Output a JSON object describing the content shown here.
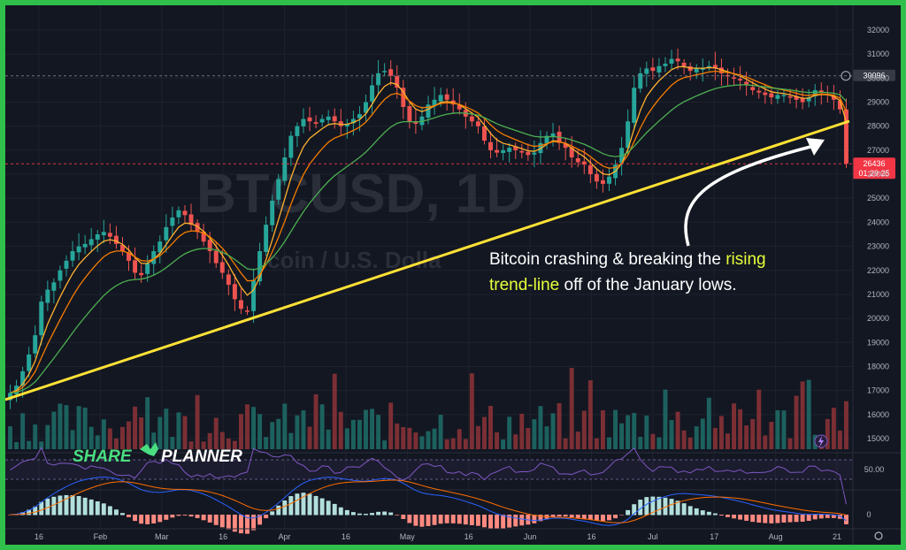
{
  "chart_data": {
    "type": "candlestick",
    "symbol_watermark": "BTCUSD, 1D",
    "watermark_subtitle": "coin / U.S. Dolla",
    "y_axis": {
      "ticks": [
        32000,
        31000,
        30000,
        29000,
        28000,
        27000,
        26000,
        25000,
        24000,
        23000,
        22000,
        21000,
        20000,
        19000,
        18000,
        17000,
        16000,
        15000
      ],
      "ylim": [
        14800,
        32300
      ]
    },
    "x_axis_ticks": [
      "16",
      "Feb",
      "Mar",
      "16",
      "Apr",
      "16",
      "May",
      "16",
      "Jun",
      "16",
      "Jul",
      "17",
      "Aug",
      "21"
    ],
    "price_markers": [
      {
        "value": 30096,
        "label": "30096",
        "color": "#363a45"
      },
      {
        "value": 26436,
        "label": "26436",
        "sublabel": "01:29:25",
        "color": "#f23645"
      }
    ],
    "close_series": [
      16900,
      17200,
      17800,
      18500,
      19300,
      20700,
      21200,
      21500,
      22000,
      22400,
      22800,
      23000,
      23100,
      23300,
      23500,
      23600,
      23400,
      23100,
      22800,
      22400,
      21900,
      21800,
      22300,
      22800,
      23200,
      23800,
      24200,
      24500,
      24300,
      23900,
      23600,
      23200,
      22800,
      22300,
      21900,
      21400,
      20800,
      20400,
      20300,
      21600,
      22800,
      23900,
      24900,
      25800,
      26700,
      27600,
      28000,
      28300,
      28200,
      28100,
      28300,
      28400,
      28200,
      28000,
      28100,
      28300,
      28500,
      29000,
      29700,
      30200,
      30300,
      30100,
      29600,
      28800,
      28200,
      28100,
      28400,
      28900,
      29100,
      29300,
      29100,
      28900,
      28700,
      28400,
      28200,
      28000,
      27400,
      27000,
      26900,
      27000,
      27100,
      27000,
      26900,
      26800,
      26900,
      27300,
      27600,
      27700,
      27300,
      27100,
      26700,
      26500,
      26400,
      26000,
      25700,
      25600,
      25900,
      26400,
      27100,
      28200,
      29600,
      30200,
      30400,
      30300,
      30500,
      30600,
      30800,
      30700,
      30500,
      30300,
      30400,
      30400,
      30500,
      30400,
      30200,
      30100,
      30000,
      29900,
      29700,
      29500,
      29400,
      29300,
      29200,
      29300,
      29300,
      29200,
      29100,
      29000,
      29200,
      29500,
      29400,
      29300,
      29100,
      28700,
      26436
    ],
    "volume_levels": [
      "very low",
      "low",
      "medium",
      "high",
      "very high"
    ],
    "rsi_marker": {
      "value": 50.0,
      "label": "50.00"
    },
    "macd_zero_label": "0"
  },
  "annotation": {
    "line1_pre": "Bitcoin crashing & breaking the ",
    "line1_hl": "rising",
    "line2_hl": "trend-line",
    "line2_post": " off of the January lows."
  },
  "logo": {
    "part1": "SHARE",
    "part2": "PLANNER"
  },
  "colors": {
    "up": "#26a69a",
    "down": "#ef5350",
    "trendline": "#ffe135",
    "ma_fast": "#ffb12e",
    "ma_mid": "#f57c00",
    "ma_slow": "#4caf50",
    "rsi": "#7e57c2",
    "accent": "#2fbf4a"
  }
}
